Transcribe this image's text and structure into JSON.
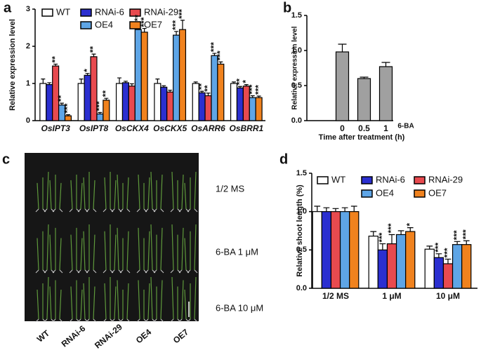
{
  "chart_data": [
    {
      "type": "bar",
      "panel_label": "a",
      "y_label": "Relative expression level",
      "categories": [
        "OsIPT3",
        "OsIPT8",
        "OsCKX4",
        "OsCKX5",
        "OsARR6",
        "OsBRR1"
      ],
      "series": [
        {
          "name": "WT",
          "color": "#ffffff",
          "values": [
            1.0,
            1.0,
            1.0,
            1.0,
            1.0,
            1.0
          ],
          "errors": [
            0.12,
            0.12,
            0.15,
            0.12,
            0.04,
            0.04
          ],
          "stars": [
            null,
            null,
            null,
            null,
            null,
            null
          ]
        },
        {
          "name": "RNAi-6",
          "color": "#2b2fd0",
          "values": [
            0.97,
            1.22,
            1.02,
            0.9,
            0.75,
            0.88
          ],
          "errors": [
            0.05,
            0.05,
            0.04,
            0.04,
            0.04,
            0.04
          ],
          "stars": [
            null,
            "*",
            null,
            null,
            "**",
            "**"
          ]
        },
        {
          "name": "RNAi-29",
          "color": "#e84a4f",
          "values": [
            1.47,
            1.72,
            0.93,
            0.77,
            0.67,
            0.93
          ],
          "errors": [
            0.05,
            0.07,
            0.06,
            0.05,
            0.07,
            0.04
          ],
          "stars": [
            "**",
            "**",
            null,
            null,
            "**",
            "*"
          ]
        },
        {
          "name": "OE4",
          "color": "#5ea5e6",
          "values": [
            0.42,
            0.18,
            2.45,
            2.3,
            1.75,
            0.62
          ],
          "errors": [
            0.05,
            0.04,
            0.1,
            0.1,
            0.06,
            0.05
          ],
          "stars": [
            "**",
            "***",
            "***",
            "***",
            "***",
            "***"
          ]
        },
        {
          "name": "OE7",
          "color": "#f0821e",
          "values": [
            0.13,
            0.55,
            2.38,
            2.45,
            1.52,
            0.62
          ],
          "errors": [
            0.03,
            0.05,
            0.1,
            0.25,
            0.06,
            0.04
          ],
          "stars": [
            "***",
            "**",
            "***",
            "***",
            "***",
            "***"
          ]
        }
      ],
      "ylim": [
        0,
        3
      ],
      "yticks": [
        0,
        1,
        2,
        3
      ]
    },
    {
      "type": "bar",
      "panel_label": "b",
      "y_label": "Relative expression level",
      "x_label": "Time after treatment (h)",
      "annotation": "6-BA",
      "categories": [
        "0",
        "0.5",
        "1"
      ],
      "series": [
        {
          "color": "#a0a0a0",
          "values": [
            0.98,
            0.6,
            0.77
          ],
          "errors": [
            0.11,
            0.02,
            0.06
          ]
        }
      ],
      "ylim": [
        0,
        1.5
      ],
      "yticks": [
        {
          "value": 0,
          "label": "0.0"
        },
        {
          "value": 0.5,
          "label": "0.5"
        },
        {
          "value": 1,
          "label": "1.0"
        },
        {
          "value": 1.5,
          "label": "1.5"
        }
      ]
    },
    {
      "type": "bar",
      "panel_label": "d",
      "y_label": "Relative shoot length (%)",
      "categories": [
        "1/2 MS",
        "1 μM",
        "10 μM"
      ],
      "series": [
        {
          "name": "WT",
          "color": "#ffffff",
          "values": [
            1.0,
            0.68,
            0.51
          ],
          "errors": [
            0.07,
            0.06,
            0.04
          ],
          "stars": [
            null,
            null,
            null
          ]
        },
        {
          "name": "RNAi-6",
          "color": "#2b2fd0",
          "values": [
            1.0,
            0.5,
            0.4
          ],
          "errors": [
            0.05,
            0.08,
            0.05
          ],
          "stars": [
            null,
            "***",
            "***"
          ]
        },
        {
          "name": "RNAi-29",
          "color": "#e84a4f",
          "values": [
            1.0,
            0.58,
            0.32
          ],
          "errors": [
            0.04,
            0.12,
            0.06
          ],
          "stars": [
            null,
            "***",
            "***"
          ]
        },
        {
          "name": "OE4",
          "color": "#5ea5e6",
          "values": [
            1.0,
            0.7,
            0.57
          ],
          "errors": [
            0.05,
            0.05,
            0.04
          ],
          "stars": [
            null,
            null,
            "***"
          ]
        },
        {
          "name": "OE7",
          "color": "#f0821e",
          "values": [
            1.0,
            0.74,
            0.57
          ],
          "errors": [
            0.07,
            0.05,
            0.05
          ],
          "stars": [
            null,
            "*",
            "***"
          ]
        }
      ],
      "ylim": [
        0,
        1.5
      ],
      "yticks": [
        {
          "value": 0,
          "label": "0.0"
        },
        {
          "value": 0.5,
          "label": "0.5"
        },
        {
          "value": 1,
          "label": "1.0"
        },
        {
          "value": 1.5,
          "label": "1.5"
        }
      ]
    }
  ],
  "photo": {
    "panel_label": "c",
    "row_labels": [
      "1/2 MS",
      "6-BA 1 μM",
      "6-BA 10 μM"
    ],
    "column_labels": [
      "WT",
      "RNAi-6",
      "RNAi-29",
      "OE4",
      "OE7"
    ]
  }
}
